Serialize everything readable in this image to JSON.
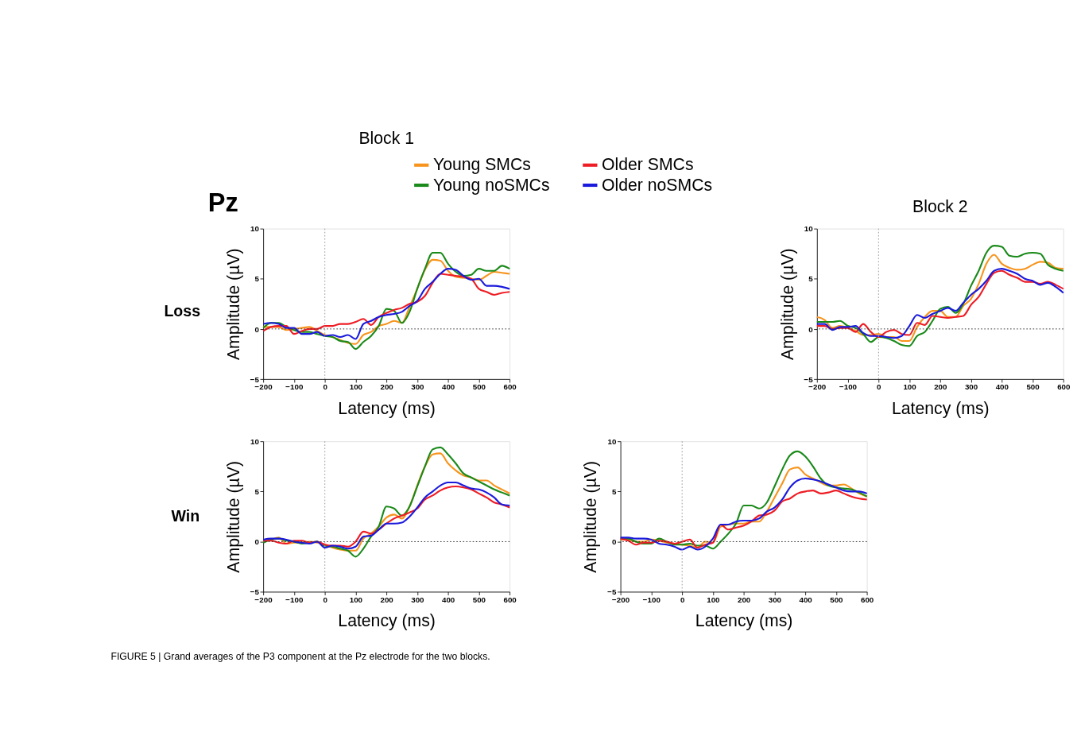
{
  "chart_data": [
    {
      "type": "line",
      "title": "Block 1",
      "xlabel": "Latency (ms)",
      "ylabel": "Amplitude (µV)",
      "xlim": [
        -200,
        600
      ],
      "xticks": [
        -200,
        -100,
        0,
        100,
        200,
        300,
        400,
        500,
        600
      ],
      "ylim": [
        -5,
        10
      ],
      "yticks": [
        -5,
        0,
        5,
        10
      ],
      "legend": "top",
      "line_style": "solid",
      "marker": "none",
      "annotations": [
        "Pz",
        "Loss"
      ],
      "ref_lines": [
        {
          "axis": "y",
          "value": 0,
          "line_style": "dotted",
          "color": "#333333"
        },
        {
          "axis": "x",
          "value": 0,
          "line_style": "dotted",
          "color": "#999999"
        }
      ],
      "x": [
        -200,
        -175,
        -150,
        -125,
        -100,
        -75,
        -50,
        -25,
        0,
        25,
        50,
        75,
        100,
        125,
        150,
        175,
        200,
        225,
        250,
        275,
        300,
        325,
        350,
        375,
        400,
        425,
        450,
        475,
        500,
        525,
        550,
        575,
        600
      ],
      "series": [
        {
          "name": "Young SMCs",
          "color": "#f7941d",
          "values": [
            0.2,
            0.2,
            0.2,
            -0.1,
            0,
            0.1,
            0.2,
            -0.2,
            -0.6,
            -0.8,
            -1.1,
            -1.4,
            -1.5,
            -0.6,
            -0.3,
            0.3,
            0.5,
            0.8,
            0.6,
            2.2,
            4.0,
            5.9,
            6.9,
            6.8,
            5.8,
            5.2,
            5.1,
            5.0,
            4.9,
            5.3,
            5.7,
            5.6,
            5.5
          ]
        },
        {
          "name": "Young noSMCs",
          "color": "#1a8a1a",
          "values": [
            0.1,
            0.6,
            0.6,
            0.2,
            -0.1,
            -0.3,
            -0.3,
            -0.5,
            -0.7,
            -0.8,
            -1.2,
            -1.3,
            -2.0,
            -1.3,
            -0.7,
            0.3,
            2.0,
            1.8,
            0.6,
            1.7,
            4.0,
            6.0,
            7.6,
            7.6,
            6.5,
            5.7,
            5.3,
            5.4,
            6.0,
            5.8,
            5.8,
            6.3,
            6.0
          ]
        },
        {
          "name": "Older SMCs",
          "color": "#ee1c24",
          "values": [
            -0.2,
            0.2,
            0.3,
            0.3,
            -0.5,
            -0.2,
            0,
            0,
            0.3,
            0.3,
            0.5,
            0.5,
            0.7,
            1.0,
            0.4,
            1.2,
            1.6,
            1.9,
            2.1,
            2.5,
            2.7,
            3.3,
            4.6,
            5.5,
            5.4,
            5.3,
            5.2,
            5.0,
            4.0,
            3.7,
            3.4,
            3.6,
            3.7
          ]
        },
        {
          "name": "Older noSMCs",
          "color": "#1a1adc",
          "values": [
            0.5,
            0.6,
            0.5,
            0.1,
            0.1,
            -0.5,
            -0.5,
            -0.3,
            -0.7,
            -0.6,
            -0.8,
            -0.6,
            -1.0,
            0.5,
            0.8,
            1.2,
            1.4,
            1.5,
            1.7,
            2.3,
            2.8,
            4.0,
            4.7,
            5.5,
            6.0,
            5.9,
            5.3,
            4.9,
            5.0,
            4.3,
            4.3,
            4.2,
            4.0
          ]
        }
      ]
    },
    {
      "type": "line",
      "title": "Block 2",
      "xlabel": "Latency (ms)",
      "ylabel": "Amplitude (µV)",
      "xlim": [
        -200,
        600
      ],
      "xticks": [
        -200,
        -100,
        0,
        100,
        200,
        300,
        400,
        500,
        600
      ],
      "ylim": [
        -5,
        10
      ],
      "yticks": [
        -5,
        0,
        5,
        10
      ],
      "line_style": "solid",
      "marker": "none",
      "ref_lines": [
        {
          "axis": "y",
          "value": 0,
          "line_style": "dotted",
          "color": "#333333"
        },
        {
          "axis": "x",
          "value": 0,
          "line_style": "dotted",
          "color": "#999999"
        }
      ],
      "x": [
        -200,
        -175,
        -150,
        -125,
        -100,
        -75,
        -50,
        -25,
        0,
        25,
        50,
        75,
        100,
        125,
        150,
        175,
        200,
        225,
        250,
        275,
        300,
        325,
        350,
        375,
        400,
        425,
        450,
        475,
        500,
        525,
        550,
        575,
        600
      ],
      "series": [
        {
          "color": "#f7941d",
          "values": [
            1.2,
            0.9,
            0.1,
            0.3,
            0.1,
            -0.2,
            -0.6,
            -0.6,
            -0.5,
            -0.8,
            -0.8,
            -1.2,
            -1.2,
            0.2,
            1.2,
            1.8,
            1.8,
            1.2,
            1.2,
            2.3,
            3.0,
            4.5,
            6.5,
            7.4,
            6.5,
            6.1,
            5.9,
            6.0,
            6.4,
            6.7,
            6.6,
            6.1,
            6.0
          ]
        },
        {
          "color": "#1a8a1a",
          "values": [
            0.7,
            0.7,
            0.7,
            0.8,
            0.3,
            0.1,
            -0.5,
            -1.3,
            -0.8,
            -0.9,
            -1.2,
            -1.6,
            -1.7,
            -0.7,
            -0.3,
            0.8,
            2.0,
            2.2,
            1.6,
            2.5,
            4.3,
            5.8,
            7.6,
            8.3,
            8.2,
            7.3,
            7.2,
            7.5,
            7.6,
            7.5,
            6.4,
            6.0,
            5.8
          ]
        },
        {
          "color": "#ee1c24",
          "values": [
            0.3,
            0.3,
            0,
            0.1,
            0.1,
            -0.3,
            0.5,
            -0.3,
            -0.8,
            -0.3,
            -0.1,
            -0.5,
            -0.6,
            0.6,
            0.4,
            1.3,
            1.2,
            1.1,
            1.2,
            1.3,
            2.4,
            3.2,
            4.5,
            5.6,
            5.8,
            5.4,
            5.1,
            4.7,
            4.7,
            4.5,
            4.7,
            4.4,
            4.0
          ]
        },
        {
          "color": "#1a1adc",
          "values": [
            0.5,
            0.5,
            -0.1,
            0.2,
            0.2,
            0.3,
            -0.4,
            -0.7,
            -0.7,
            -0.8,
            -0.9,
            -0.7,
            0.3,
            1.4,
            1.1,
            1.5,
            1.8,
            2.1,
            1.8,
            2.6,
            3.4,
            4.0,
            4.8,
            5.8,
            6.0,
            5.8,
            5.5,
            5.0,
            4.8,
            4.4,
            4.6,
            4.2,
            3.6
          ]
        }
      ]
    },
    {
      "type": "line",
      "xlabel": "Latency (ms)",
      "ylabel": "Amplitude (µV)",
      "xlim": [
        -200,
        600
      ],
      "xticks": [
        -200,
        -100,
        0,
        100,
        200,
        300,
        400,
        500,
        600
      ],
      "ylim": [
        -5,
        10
      ],
      "yticks": [
        -5,
        0,
        5,
        10
      ],
      "line_style": "solid",
      "marker": "none",
      "annotations": [
        "Win",
        "FIGURE 5 | Grand averages of the P3 component at the Pz electrode for the two blocks."
      ],
      "ref_lines": [
        {
          "axis": "y",
          "value": 0,
          "line_style": "dotted",
          "color": "#333333"
        },
        {
          "axis": "x",
          "value": 0,
          "line_style": "dotted",
          "color": "#999999"
        }
      ],
      "x": [
        -200,
        -175,
        -150,
        -125,
        -100,
        -75,
        -50,
        -25,
        0,
        25,
        50,
        75,
        100,
        125,
        150,
        175,
        200,
        225,
        250,
        275,
        300,
        325,
        350,
        375,
        400,
        425,
        450,
        475,
        500,
        525,
        550,
        575,
        600
      ],
      "series": [
        {
          "color": "#f7941d",
          "values": [
            0,
            0.2,
            0.4,
            -0.2,
            -0.1,
            -0.1,
            0,
            -0.1,
            -0.3,
            -0.6,
            -0.8,
            -0.9,
            -0.9,
            0.3,
            0.8,
            1.5,
            2.4,
            2.7,
            2.3,
            3.5,
            5.6,
            7.5,
            8.7,
            8.8,
            7.8,
            7.1,
            6.6,
            6.4,
            6.1,
            6.1,
            5.6,
            5.2,
            4.8
          ]
        },
        {
          "color": "#1a8a1a",
          "values": [
            -0.1,
            0.2,
            0.3,
            0.1,
            0,
            -0.2,
            -0.1,
            0,
            -0.4,
            -0.5,
            -0.7,
            -0.9,
            -1.5,
            -0.7,
            0.5,
            1.5,
            3.5,
            3.3,
            2.6,
            3.5,
            5.5,
            7.5,
            9.2,
            9.4,
            8.7,
            7.8,
            6.8,
            6.4,
            6.0,
            5.6,
            5.2,
            4.9,
            4.6
          ]
        },
        {
          "color": "#ee1c24",
          "values": [
            0.1,
            0.1,
            -0.1,
            -0.2,
            0.1,
            0.1,
            -0.1,
            0,
            -0.3,
            -0.4,
            -0.4,
            -0.5,
            0,
            1.0,
            0.8,
            1.2,
            1.8,
            2.3,
            2.6,
            2.9,
            3.3,
            4.2,
            4.6,
            5.1,
            5.4,
            5.5,
            5.4,
            5.2,
            4.8,
            4.4,
            3.9,
            3.7,
            3.4
          ]
        },
        {
          "color": "#1a1adc",
          "values": [
            0.2,
            0.3,
            0.3,
            0.2,
            0,
            -0.1,
            -0.2,
            0,
            -0.6,
            -0.4,
            -0.5,
            -0.7,
            -0.5,
            0.5,
            0.6,
            1.2,
            1.8,
            1.8,
            1.9,
            2.5,
            3.4,
            4.4,
            5.0,
            5.6,
            5.9,
            5.9,
            5.6,
            5.3,
            5.2,
            4.9,
            4.4,
            3.7,
            3.6
          ]
        }
      ]
    },
    {
      "type": "line",
      "xlabel": "Latency (ms)",
      "ylabel": "Amplitude (µV)",
      "xlim": [
        -200,
        600
      ],
      "xticks": [
        -200,
        -100,
        0,
        100,
        200,
        300,
        400,
        500,
        600
      ],
      "ylim": [
        -5,
        10
      ],
      "yticks": [
        -5,
        0,
        5,
        10
      ],
      "line_style": "solid",
      "marker": "none",
      "ref_lines": [
        {
          "axis": "y",
          "value": 0,
          "line_style": "dotted",
          "color": "#333333"
        },
        {
          "axis": "x",
          "value": 0,
          "line_style": "dotted",
          "color": "#999999"
        }
      ],
      "x": [
        -200,
        -175,
        -150,
        -125,
        -100,
        -75,
        -50,
        -25,
        0,
        25,
        50,
        75,
        100,
        125,
        150,
        175,
        200,
        225,
        250,
        275,
        300,
        325,
        350,
        375,
        400,
        425,
        450,
        475,
        500,
        525,
        550,
        575,
        600
      ],
      "series": [
        {
          "color": "#f7941d",
          "values": [
            0.2,
            0.2,
            0,
            0,
            0.2,
            0.1,
            -0.1,
            -0.2,
            -0.3,
            -0.4,
            -0.6,
            0,
            -0.1,
            1.5,
            1.7,
            1.8,
            1.8,
            2.0,
            2.0,
            3.0,
            4.4,
            5.8,
            7.2,
            7.4,
            6.7,
            6.3,
            5.9,
            5.6,
            5.6,
            5.7,
            5.3,
            4.8,
            4.5
          ]
        },
        {
          "color": "#1a8a1a",
          "values": [
            0.3,
            0.3,
            0,
            -0.2,
            -0.2,
            0.3,
            0,
            -0.3,
            -0.3,
            -0.2,
            -0.4,
            -0.4,
            -0.7,
            0,
            0.8,
            1.8,
            3.6,
            3.6,
            3.3,
            3.9,
            5.5,
            7.2,
            8.6,
            9.0,
            8.5,
            7.5,
            6.3,
            5.6,
            5.4,
            5.3,
            5.2,
            4.9,
            4.5
          ]
        },
        {
          "color": "#ee1c24",
          "values": [
            0.3,
            0.1,
            -0.3,
            -0.1,
            -0.1,
            0.1,
            0,
            -0.2,
            0,
            0.2,
            -0.6,
            -0.3,
            -0.1,
            1.7,
            1.2,
            1.4,
            1.6,
            2.0,
            2.6,
            2.7,
            3.1,
            4.0,
            4.3,
            4.8,
            5.0,
            5.1,
            4.8,
            4.9,
            5.1,
            4.8,
            4.5,
            4.3,
            4.2
          ]
        },
        {
          "color": "#1a1adc",
          "values": [
            0.4,
            0.4,
            0.3,
            0.3,
            0.2,
            -0.2,
            -0.3,
            -0.5,
            -0.8,
            -0.5,
            -0.8,
            -0.5,
            0.3,
            1.7,
            1.7,
            2.0,
            2.1,
            2.1,
            2.3,
            3.0,
            3.4,
            4.2,
            5.4,
            6.1,
            6.3,
            6.2,
            6.0,
            5.7,
            5.4,
            5.1,
            5.0,
            5.0,
            4.8
          ]
        }
      ]
    }
  ]
}
